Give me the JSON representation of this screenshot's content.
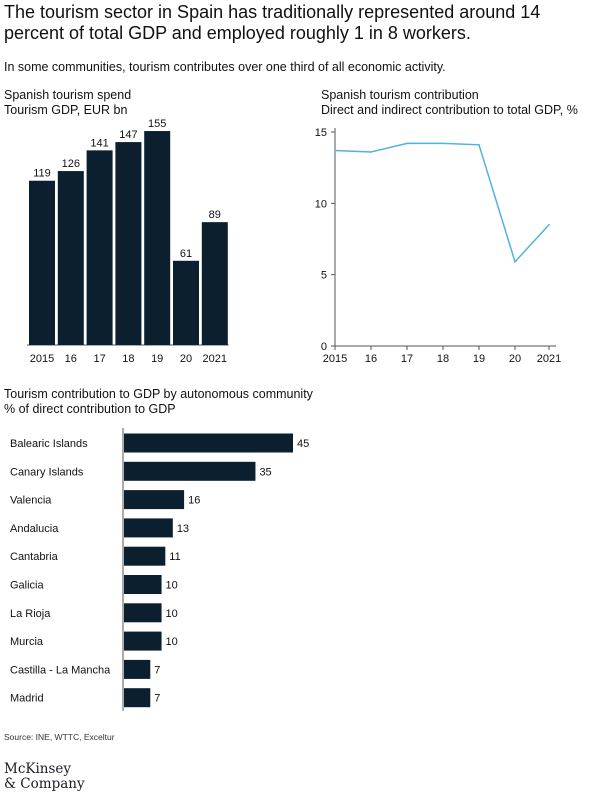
{
  "headline": "The tourism sector in Spain has traditionally represented around 14 percent of total GDP and employed roughly 1 in 8 workers.",
  "subheadline": "In some communities, tourism contributes over one third of all economic activity.",
  "source": "Source: INE, WTTC, Exceltur",
  "logo": {
    "line1": "McKinsey",
    "line2": "& Company"
  },
  "colors": {
    "bar": "#0b1f2e",
    "line": "#4fb3dd",
    "axis": "#555555",
    "text": "#111111"
  },
  "chart_data": [
    {
      "type": "bar",
      "title": "Spanish tourism spend",
      "subtitle": "Tourism GDP, EUR bn",
      "categories": [
        "2015",
        "16",
        "17",
        "18",
        "19",
        "20",
        "2021"
      ],
      "values": [
        119,
        126,
        141,
        147,
        155,
        61,
        89
      ],
      "ylim": [
        0,
        163
      ],
      "grid": false,
      "data_labels": true
    },
    {
      "type": "line",
      "title": "Spanish tourism contribution",
      "subtitle": "Direct and indirect contribution to total GDP, %",
      "x": [
        "2015",
        "16",
        "17",
        "18",
        "19",
        "20",
        "2021"
      ],
      "values": [
        13.7,
        13.6,
        14.2,
        14.2,
        14.1,
        5.9,
        8.5
      ],
      "yticks": [
        0,
        5,
        10,
        15
      ],
      "ylim": [
        0,
        15
      ],
      "grid": false
    },
    {
      "type": "bar",
      "orientation": "horizontal",
      "title": "Tourism contribution to GDP by autonomous community",
      "subtitle": "% of direct contribution to GDP",
      "categories": [
        "Balearic Islands",
        "Canary Islands",
        "Valencia",
        "Andalucia",
        "Cantabria",
        "Galicia",
        "La Rioja",
        "Murcia",
        "Castilla - La Mancha",
        "Madrid"
      ],
      "values": [
        45,
        35,
        16,
        13,
        11,
        10,
        10,
        10,
        7,
        7
      ],
      "xlim": [
        0,
        45
      ],
      "grid": false,
      "data_labels": true
    }
  ]
}
